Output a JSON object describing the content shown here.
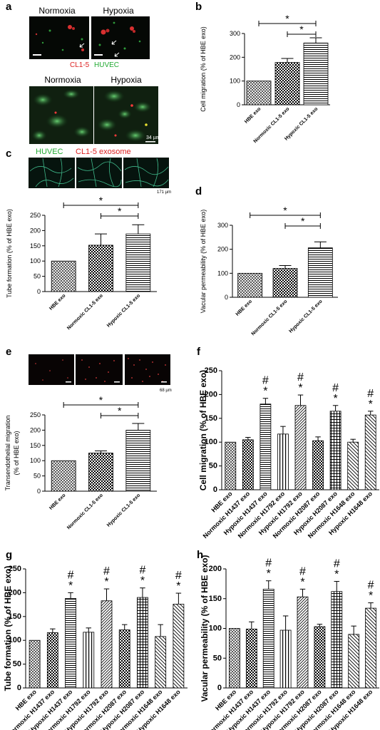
{
  "panels": {
    "a": "a",
    "b": "b",
    "c": "c",
    "d": "d",
    "e": "e",
    "f": "f",
    "g": "g",
    "h": "h"
  },
  "micro_a": {
    "top_left_title": "Normoxia",
    "top_right_title": "Hypoxia",
    "legend_top_red": "CL1-5",
    "legend_top_green": "HUVEC",
    "bottom_left_title": "Normoxia",
    "bottom_right_title": "Hypoxia",
    "scale_bottom": "34 µm",
    "legend_bottom_green": "HUVEC",
    "legend_bottom_red": "CL1-5 exosome",
    "green_color": "#22aa33",
    "red_color": "#dd2222"
  },
  "micro_c": {
    "scale": "171 µm"
  },
  "micro_e": {
    "scale": "68 µm"
  },
  "chart_data": [
    {
      "id": "b",
      "type": "bar",
      "ylabel": "Cell migration (% of HBE exo)",
      "categories": [
        "HBE exo",
        "Normoxic CL1-5 exo",
        "Hypoxic CL1-5 exo"
      ],
      "values": [
        100,
        178,
        260
      ],
      "errors": [
        0,
        17,
        22
      ],
      "ylim": [
        0,
        300
      ],
      "yticks": [
        0,
        100,
        200,
        300
      ],
      "significance": [
        {
          "from": 0,
          "to": 2,
          "label": "*"
        },
        {
          "from": 1,
          "to": 2,
          "label": "*"
        }
      ]
    },
    {
      "id": "c",
      "type": "bar",
      "ylabel": "Tube formation (% of HBE exo)",
      "categories": [
        "HBE exo",
        "Normoxic CL1-5 exo",
        "Hypoxic CL1-5 exo"
      ],
      "values": [
        100,
        152,
        189
      ],
      "errors": [
        0,
        37,
        30
      ],
      "ylim": [
        0,
        250
      ],
      "yticks": [
        0,
        50,
        100,
        150,
        200,
        250
      ],
      "significance": [
        {
          "from": 0,
          "to": 2,
          "label": "*"
        },
        {
          "from": 1,
          "to": 2,
          "label": "*"
        }
      ]
    },
    {
      "id": "d",
      "type": "bar",
      "ylabel": "Vacular permeability (% of HBE exo)",
      "categories": [
        "HBE exo",
        "Normoxic CL1-5 exo",
        "Hypoxic CL1-5 exo"
      ],
      "values": [
        100,
        120,
        206
      ],
      "errors": [
        0,
        12,
        25
      ],
      "ylim": [
        0,
        300
      ],
      "yticks": [
        0,
        100,
        200,
        300
      ],
      "significance": [
        {
          "from": 0,
          "to": 2,
          "label": "*"
        },
        {
          "from": 1,
          "to": 2,
          "label": "*"
        }
      ]
    },
    {
      "id": "e",
      "type": "bar",
      "ylabel": [
        "Transendothelial migration",
        "(% of HBE exo)"
      ],
      "categories": [
        "HBE exo",
        "Normoxic CL1-5 exo",
        "Hypoxic CL1-5 exo"
      ],
      "values": [
        100,
        125,
        200
      ],
      "errors": [
        0,
        7,
        22
      ],
      "ylim": [
        0,
        250
      ],
      "yticks": [
        0,
        50,
        100,
        150,
        200,
        250
      ],
      "significance": [
        {
          "from": 0,
          "to": 2,
          "label": "*"
        },
        {
          "from": 1,
          "to": 2,
          "label": "*"
        }
      ]
    },
    {
      "id": "f",
      "type": "bar",
      "ylabel": "Cell migration (% of HBE exo)",
      "categories": [
        "HBE exo",
        "Normoxic H1437 exo",
        "Hypoxic H1437 exo",
        "Normoxic H1792 exo",
        "Hypoxic H1792 exo",
        "Normoxic H2087 exo",
        "Hypoxic H2087 exo",
        "Normoxic H1648 exo",
        "Hypoxic H1648 exo"
      ],
      "values": [
        100,
        105,
        180,
        117,
        177,
        103,
        165,
        100,
        157
      ],
      "errors": [
        0,
        5,
        12,
        16,
        22,
        8,
        12,
        6,
        8
      ],
      "ylim": [
        0,
        250
      ],
      "yticks": [
        0,
        50,
        100,
        150,
        200,
        250
      ],
      "marks": [
        "",
        "",
        "#*",
        "",
        "#*",
        "",
        "#*",
        "",
        "#*"
      ]
    },
    {
      "id": "g",
      "type": "bar",
      "ylabel": "Tube formation (% of HBE exo)",
      "categories": [
        "HBE exo",
        "Normoxic H1437 exo",
        "Hypoxic H1437 exo",
        "Normoxic H1792 exo",
        "Hypoxic H1792 exo",
        "Normoxic H2087 exo",
        "Hypoxic H2087 exo",
        "Normoxic H1648 exo",
        "Hypoxic H1648 exo"
      ],
      "values": [
        100,
        116,
        188,
        117,
        183,
        122,
        190,
        108,
        176
      ],
      "errors": [
        0,
        8,
        12,
        9,
        25,
        11,
        20,
        25,
        23
      ],
      "ylim": [
        0,
        250
      ],
      "yticks": [
        0,
        50,
        100,
        150,
        200,
        250
      ],
      "marks": [
        "",
        "",
        "#*",
        "",
        "#*",
        "",
        "#*",
        "",
        "#*"
      ]
    },
    {
      "id": "h",
      "type": "bar",
      "ylabel": "Vacular permeability (% of HBE exo)",
      "categories": [
        "HBE exo",
        "Normoxic H1437 exo",
        "Hypoxic H1437 exo",
        "Normoxic H1792 exo",
        "Hypoxic H1792 exo",
        "Normoxic H2087 exo",
        "Hypoxic H2087 exo",
        "Normoxic H1648 exo",
        "Hypoxic H1648 exo"
      ],
      "values": [
        100,
        99,
        166,
        97,
        153,
        103,
        162,
        90,
        134
      ],
      "errors": [
        0,
        12,
        14,
        24,
        13,
        4,
        17,
        14,
        9
      ],
      "ylim": [
        0,
        200
      ],
      "yticks": [
        0,
        50,
        100,
        150,
        200
      ],
      "marks": [
        "",
        "",
        "#*",
        "",
        "#*",
        "",
        "#*",
        "",
        "#*"
      ]
    }
  ]
}
